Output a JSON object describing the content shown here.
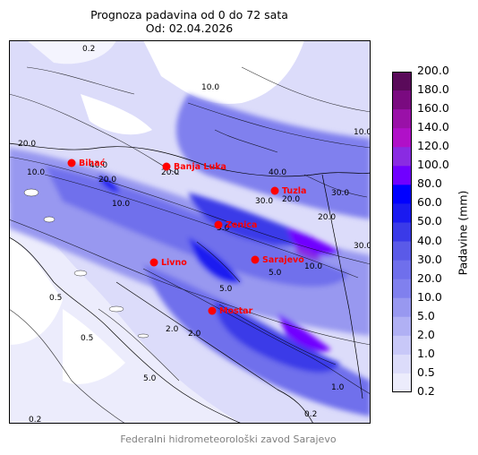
{
  "title": {
    "line1": "Prognoza padavina od 0 do 72 sata",
    "line2": "Od: 02.04.2026"
  },
  "colorbar": {
    "title": "Padavine (mm)",
    "levels": [
      "200.0",
      "180.0",
      "160.0",
      "140.0",
      "120.0",
      "100.0",
      "80.0",
      "60.0",
      "50.0",
      "40.0",
      "30.0",
      "20.0",
      "10.0",
      "5.0",
      "2.0",
      "1.0",
      "0.5",
      "0.2"
    ],
    "colors": [
      "#5a0a5a",
      "#7a0a80",
      "#9a10a8",
      "#b010c8",
      "#8a2be2",
      "#7000ff",
      "#0000ff",
      "#1a1af0",
      "#3a3ae8",
      "#5a5ae8",
      "#6f6fec",
      "#8080ee",
      "#9898f0",
      "#b0b0f4",
      "#c8c8f8",
      "#dcdcfa",
      "#ececfc"
    ]
  },
  "cities": [
    {
      "name": "Bihać"
    },
    {
      "name": "Banja Luka"
    },
    {
      "name": "Tuzla"
    },
    {
      "name": "Zenica"
    },
    {
      "name": "Livno"
    },
    {
      "name": "Sarajevo"
    },
    {
      "name": "Mostar"
    }
  ],
  "contour_labels": [
    "0.2",
    "0.2",
    "10.0",
    "10.0",
    "20.0",
    "20.0",
    "20.0",
    "30.0",
    "40.0",
    "40.0",
    "10.0",
    "5.0",
    "5.0",
    "5.0",
    "0.5",
    "0.5",
    "2.0",
    "2.0",
    "1.0",
    "10.0",
    "20.0",
    "30.0",
    "5.0",
    "0.2",
    "30.0",
    "10.0",
    "20.0"
  ],
  "footer": "Federalni hidrometeorološki zavod Sarajevo",
  "colors": {
    "city_marker": "#ff0000",
    "city_label": "#ff0000",
    "footer": "#808080"
  }
}
